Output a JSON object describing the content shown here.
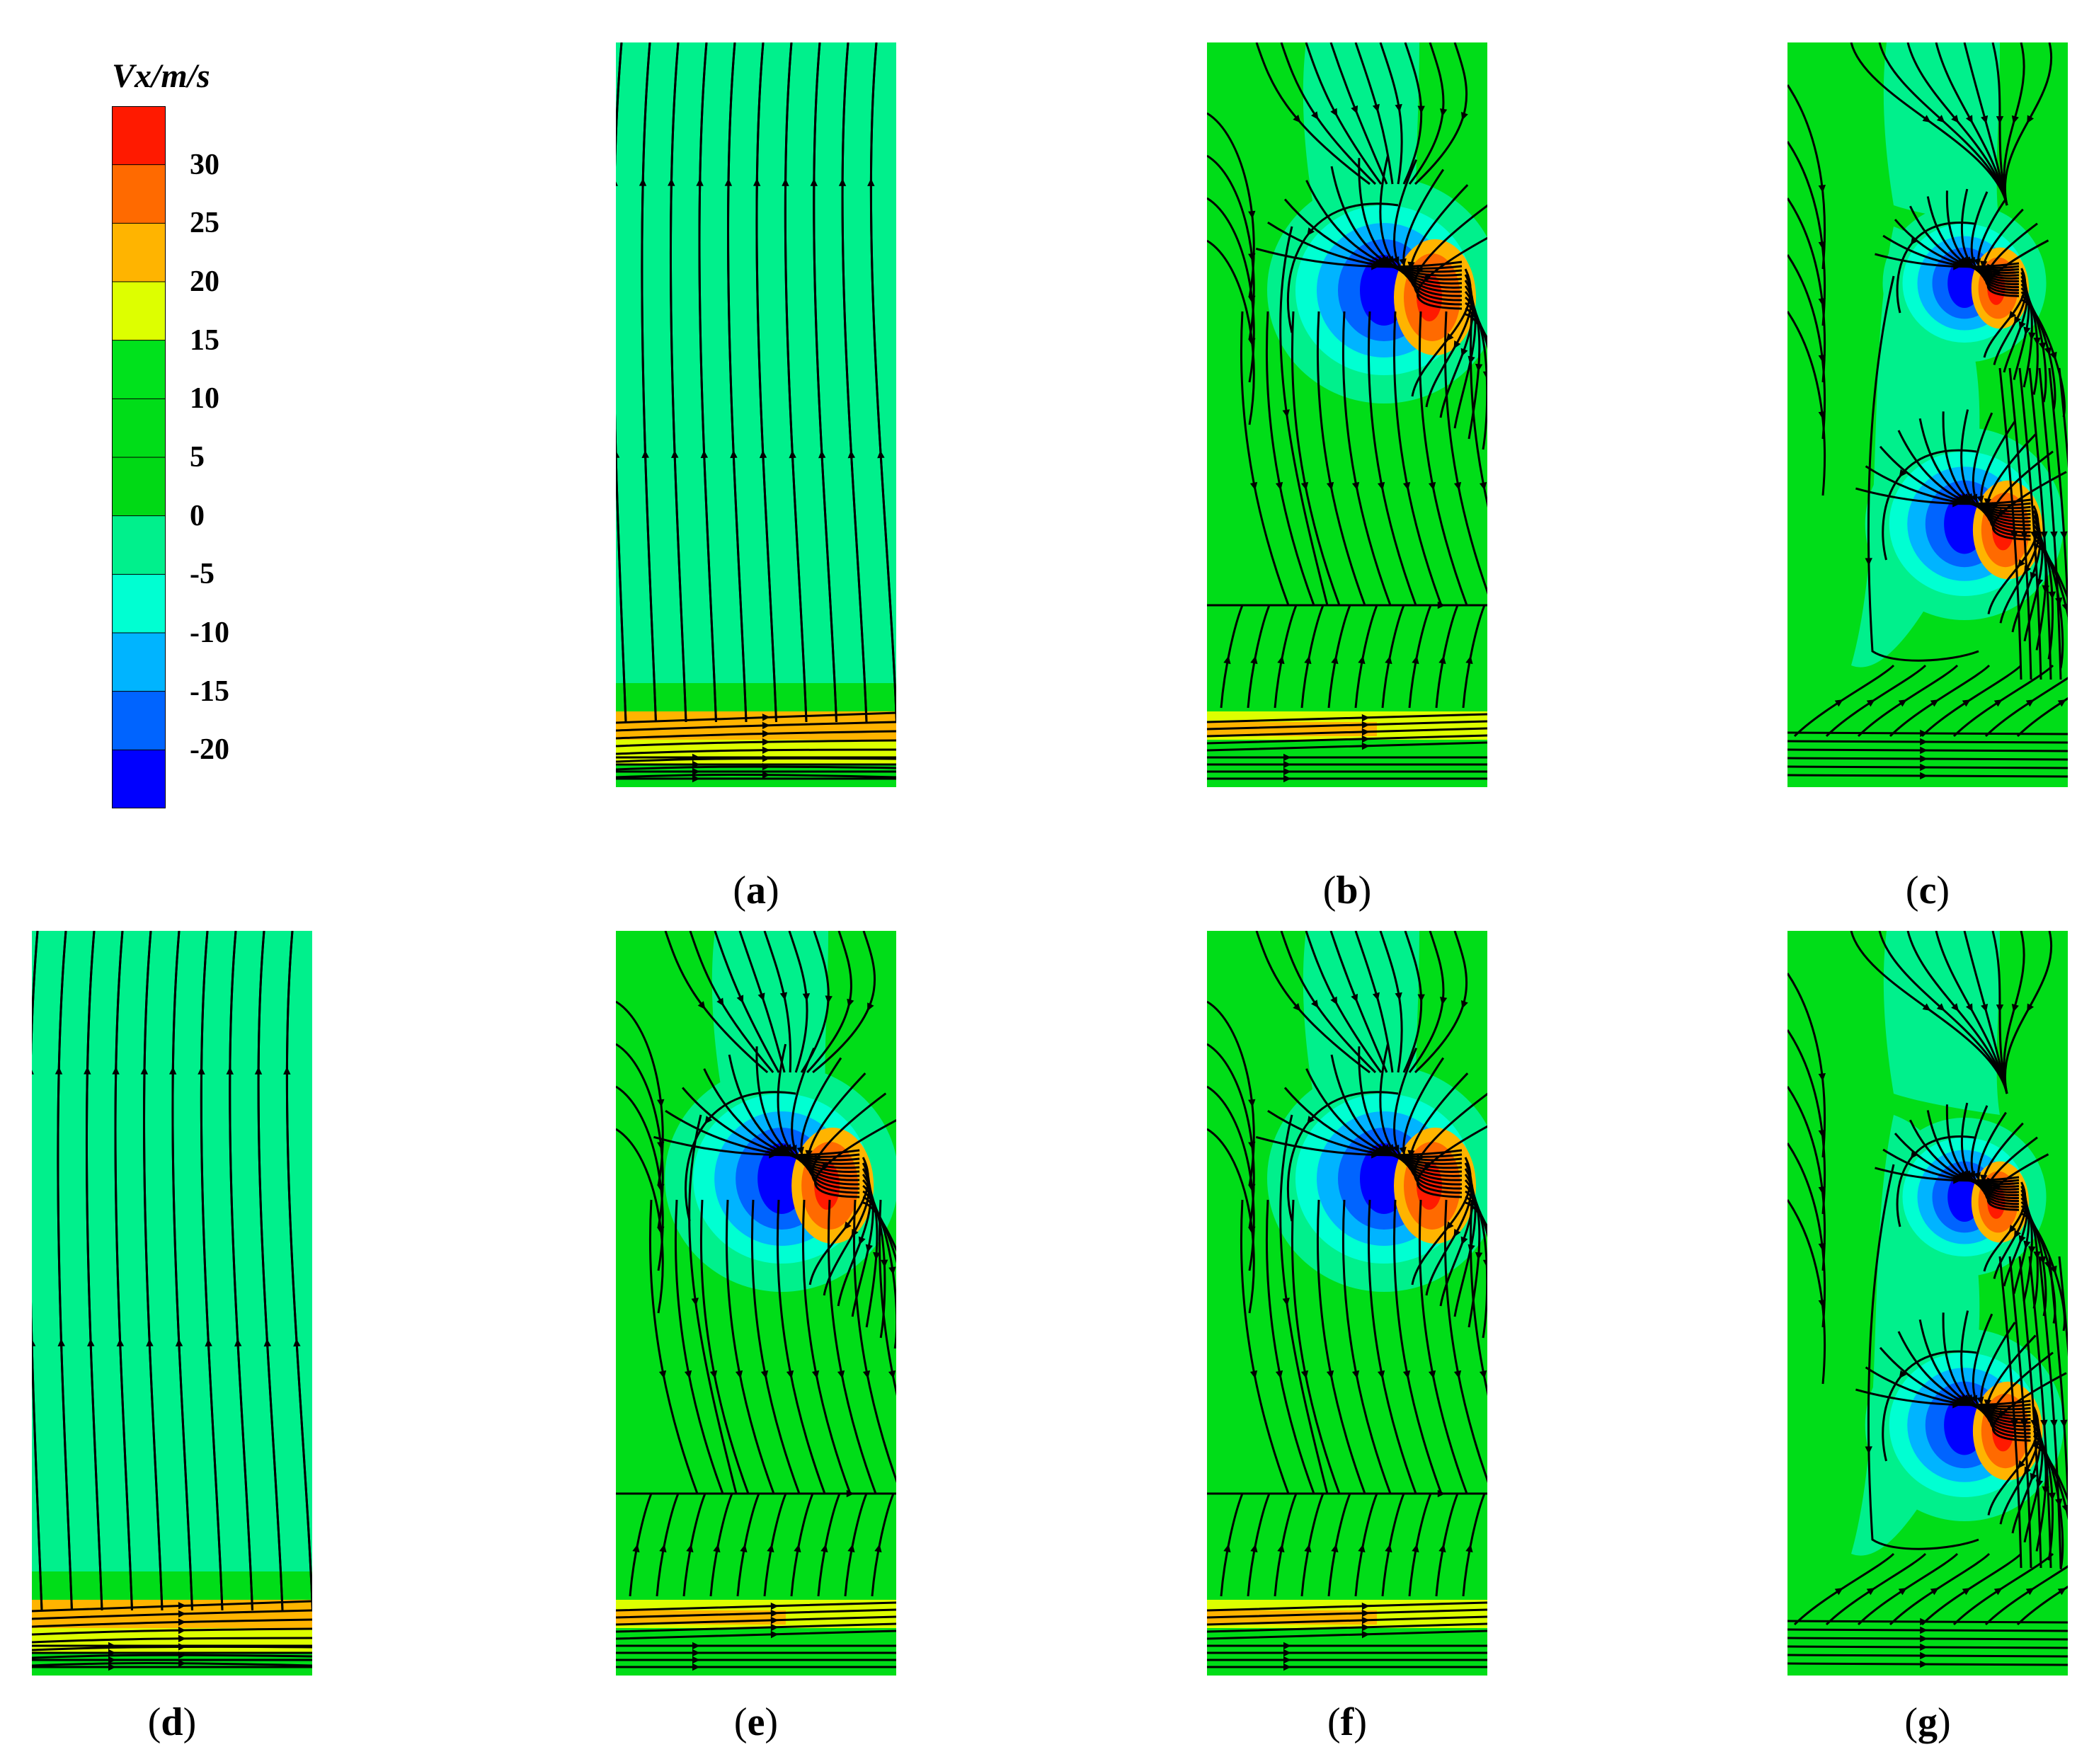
{
  "legend": {
    "title": "Vx/m/s",
    "ticks": [
      "30",
      "25",
      "20",
      "15",
      "10",
      "5",
      "0",
      "-5",
      "-10",
      "-15",
      "-20"
    ],
    "colors": [
      "#ff1a00",
      "#ff6a00",
      "#ffb400",
      "#ddff00",
      "#00e21c",
      "#00dd18",
      "#00d915",
      "#00f08c",
      "#00ffd2",
      "#00b4ff",
      "#0064ff",
      "#0000ff"
    ]
  },
  "panels": [
    {
      "id": "a",
      "caption": "a",
      "variant": "uniform",
      "offset": 0.0
    },
    {
      "id": "b",
      "caption": "b",
      "variant": "single_vortex",
      "offset": 0.0
    },
    {
      "id": "c",
      "caption": "c",
      "variant": "double_vortex",
      "offset": 0.0
    },
    {
      "id": "d",
      "caption": "d",
      "variant": "uniform",
      "offset": 0.0
    },
    {
      "id": "e",
      "caption": "e",
      "variant": "single_vortex",
      "offset": -0.04
    },
    {
      "id": "f",
      "caption": "f",
      "variant": "single_vortex",
      "offset": 0.0
    },
    {
      "id": "g",
      "caption": "g",
      "variant": "double_vortex",
      "offset": 0.06
    }
  ],
  "colors": {
    "background_field": "#00f08c",
    "base_field": "#00dd18",
    "streamline": "#000000"
  }
}
